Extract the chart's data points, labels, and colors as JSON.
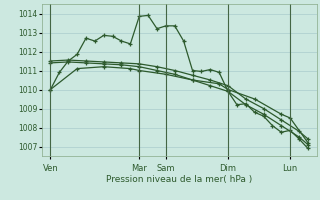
{
  "bg_color": "#cce8e0",
  "grid_color": "#aacccc",
  "line_color": "#2d5a2d",
  "xlabel": "Pression niveau de la mer( hPa )",
  "yticks": [
    1007,
    1008,
    1009,
    1010,
    1011,
    1012,
    1013,
    1014
  ],
  "ylim": [
    1006.5,
    1014.5
  ],
  "xtick_labels": [
    "Ven",
    "Mar",
    "Sam",
    "Dim",
    "Lun"
  ],
  "xtick_positions": [
    0,
    40,
    52,
    80,
    108
  ],
  "xlim": [
    -4,
    120
  ],
  "vline_positions": [
    0,
    40,
    52,
    80,
    108
  ],
  "series1_x": [
    0,
    4,
    8,
    12,
    16,
    20,
    24,
    28,
    32,
    36,
    40,
    44,
    48,
    52,
    56,
    60,
    64,
    68,
    72,
    76,
    80,
    84,
    88,
    92,
    96,
    100,
    104,
    108,
    112,
    116
  ],
  "series1_y": [
    1010.0,
    1010.9,
    1011.5,
    1011.85,
    1012.7,
    1012.55,
    1012.85,
    1012.8,
    1012.55,
    1012.4,
    1013.85,
    1013.9,
    1013.2,
    1013.35,
    1013.35,
    1012.55,
    1011.0,
    1010.95,
    1011.05,
    1010.9,
    1009.9,
    1009.2,
    1009.25,
    1008.8,
    1008.6,
    1008.1,
    1007.75,
    1007.85,
    1007.4,
    1006.9
  ],
  "series2_x": [
    0,
    8,
    16,
    24,
    32,
    40,
    48,
    56,
    64,
    72,
    80,
    88,
    96,
    104,
    112,
    116
  ],
  "series2_y": [
    1011.5,
    1011.55,
    1011.5,
    1011.45,
    1011.4,
    1011.35,
    1011.2,
    1011.0,
    1010.75,
    1010.5,
    1010.2,
    1009.5,
    1009.0,
    1008.4,
    1007.8,
    1007.4
  ],
  "series3_x": [
    0,
    8,
    16,
    24,
    32,
    40,
    48,
    56,
    64,
    72,
    80,
    88,
    96,
    104,
    112,
    116
  ],
  "series3_y": [
    1011.4,
    1011.45,
    1011.4,
    1011.35,
    1011.3,
    1011.2,
    1011.0,
    1010.8,
    1010.5,
    1010.2,
    1009.9,
    1009.2,
    1008.7,
    1008.1,
    1007.5,
    1007.1
  ],
  "series4_x": [
    0,
    12,
    24,
    36,
    40,
    52,
    64,
    76,
    80,
    92,
    104,
    108,
    116
  ],
  "series4_y": [
    1010.0,
    1011.1,
    1011.2,
    1011.1,
    1011.0,
    1010.8,
    1010.5,
    1010.3,
    1010.0,
    1009.5,
    1008.7,
    1008.5,
    1007.2
  ]
}
